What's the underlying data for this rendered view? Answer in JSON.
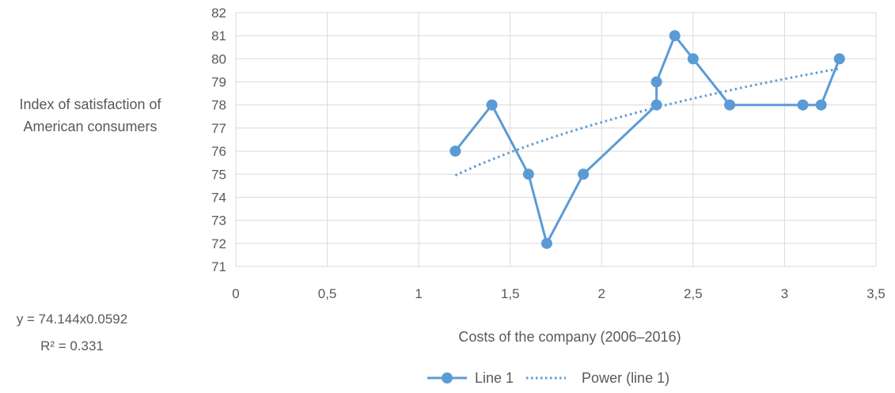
{
  "chart_data": {
    "type": "line",
    "xlabel": "Costs of the company (2006–2016)",
    "ylabel": "Index of satisfaction of American consumers",
    "xlim": [
      0,
      3.5
    ],
    "ylim": [
      71,
      82
    ],
    "x_ticks": [
      "0",
      "0,5",
      "1",
      "1,5",
      "2",
      "2,5",
      "3",
      "3,5"
    ],
    "x_tick_values": [
      0,
      0.5,
      1,
      1.5,
      2,
      2.5,
      3,
      3.5
    ],
    "y_ticks": [
      71,
      72,
      73,
      74,
      75,
      76,
      77,
      78,
      79,
      80,
      81,
      82
    ],
    "grid": true,
    "legend_position": "bottom",
    "series": [
      {
        "name": "Line 1",
        "color": "#5b9bd5",
        "x": [
          1.2,
          1.4,
          1.6,
          1.7,
          1.9,
          2.3,
          2.3,
          2.4,
          2.5,
          2.7,
          3.1,
          3.2,
          3.3
        ],
        "y": [
          76,
          78,
          75,
          72,
          75,
          78,
          79,
          81,
          80,
          78,
          78,
          78,
          80
        ]
      }
    ],
    "trendline": {
      "name": "Power (line 1)",
      "type": "power",
      "a": 74.144,
      "b": 0.0592,
      "x_range": [
        1.2,
        3.3
      ],
      "equation": "y = 74.144x0.0592",
      "r_squared": "R² = 0.331"
    }
  }
}
